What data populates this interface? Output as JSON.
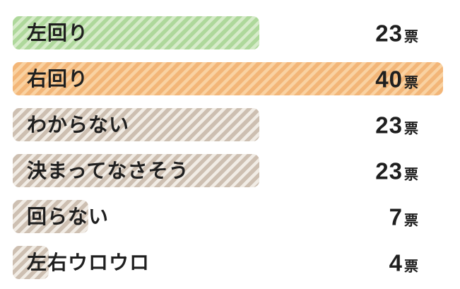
{
  "page": {
    "background": "#ffffff",
    "text_color": "#1f1f1f"
  },
  "chart_data": {
    "type": "bar",
    "orientation": "horizontal",
    "title": "",
    "xlabel": "",
    "ylabel": "",
    "unit_label": "票",
    "xlim": [
      0,
      40
    ],
    "grid": false,
    "legend": false,
    "categories": [
      "左回り",
      "右回り",
      "わからない",
      "決まってなさそう",
      "回らない",
      "左右ウロウロ"
    ],
    "values": [
      23,
      40,
      23,
      23,
      7,
      4
    ],
    "rows": [
      {
        "label": "左回り",
        "votes": "23",
        "unit": "票",
        "bar_pct": 57.3,
        "base_color": "#d6ebc9",
        "stripe_color": "#aed89b"
      },
      {
        "label": "右回り",
        "votes": "40",
        "unit": "票",
        "bar_pct": 100,
        "base_color": "#f9d2a2",
        "stripe_color": "#f3b678"
      },
      {
        "label": "わからない",
        "votes": "23",
        "unit": "票",
        "bar_pct": 57.3,
        "base_color": "#f1ece5",
        "stripe_color": "#cdbfb1"
      },
      {
        "label": "決まってなさそう",
        "votes": "23",
        "unit": "票",
        "bar_pct": 57.3,
        "base_color": "#f1ece5",
        "stripe_color": "#cdbfb1"
      },
      {
        "label": "回らない",
        "votes": "7",
        "unit": "票",
        "bar_pct": 17.5,
        "base_color": "#f1ece5",
        "stripe_color": "#cdbfb1"
      },
      {
        "label": "左右ウロウロ",
        "votes": "4",
        "unit": "票",
        "bar_pct": 8.3,
        "base_color": "#f1ece5",
        "stripe_color": "#cdbfb1"
      }
    ]
  }
}
